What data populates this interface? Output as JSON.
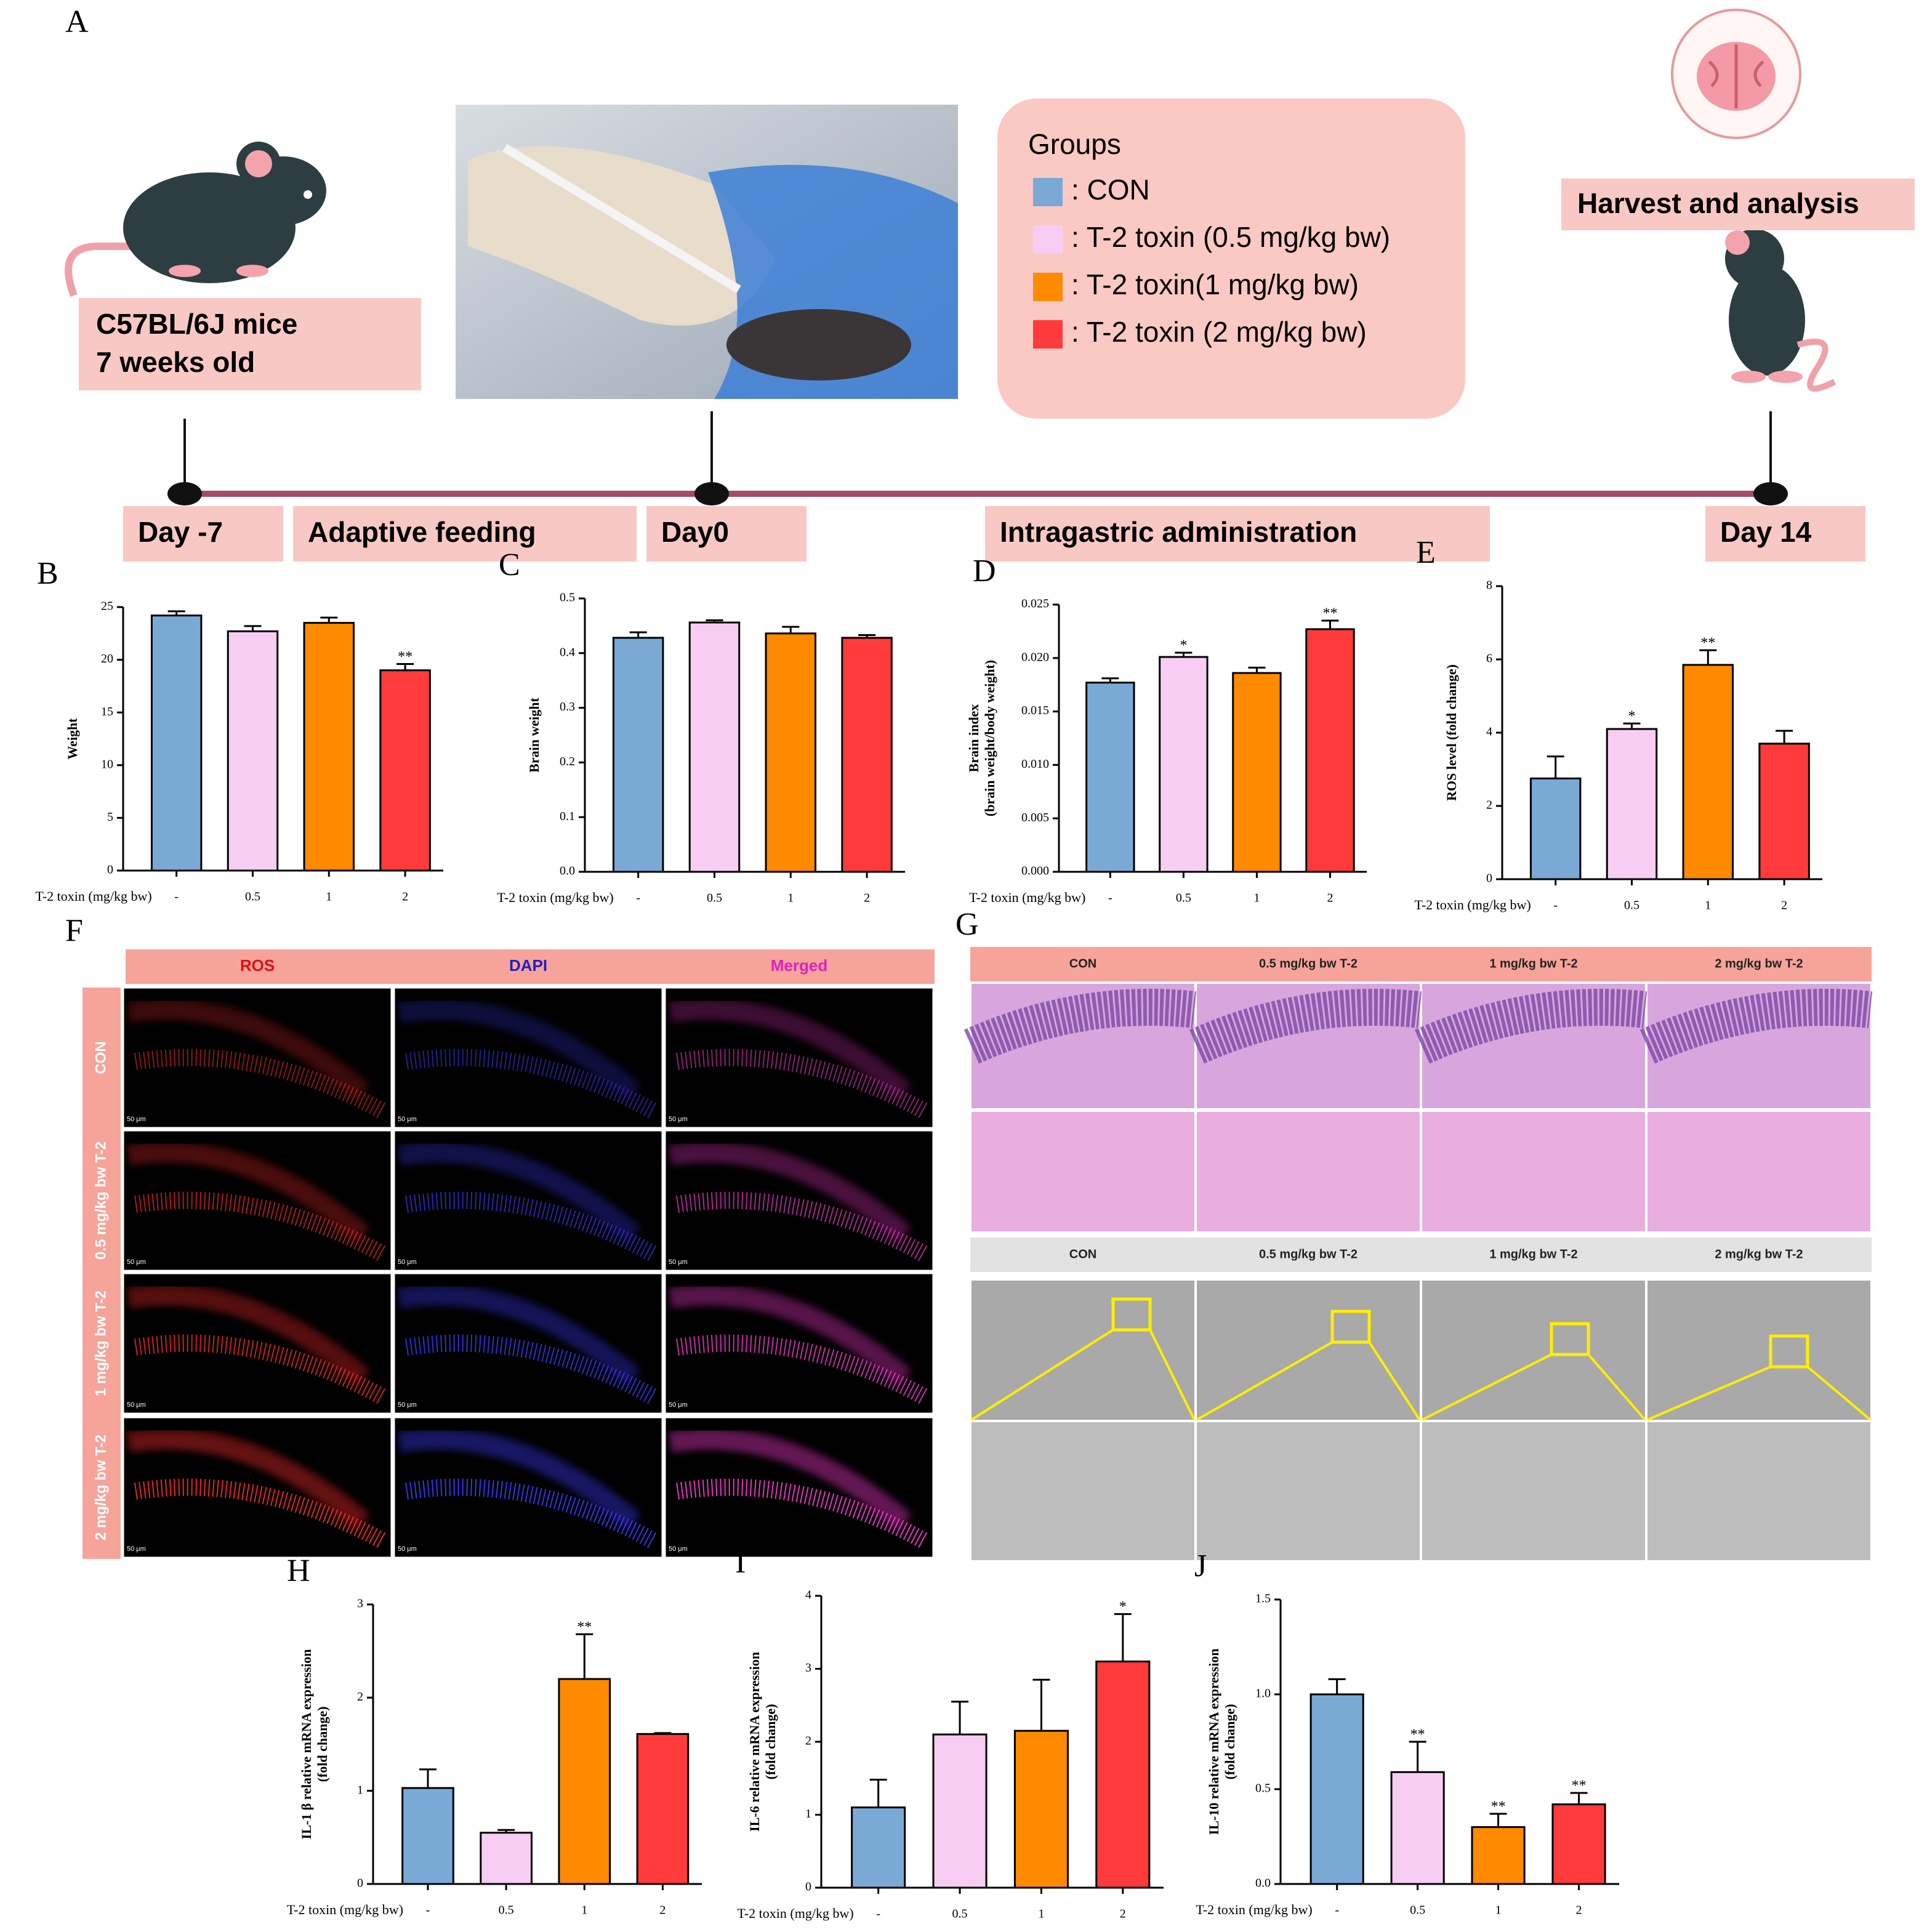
{
  "panel_a": {
    "label": "A",
    "mice_box": [
      "C57BL/6J mice",
      "7 weeks old"
    ],
    "groups_title": "Groups",
    "groups": [
      {
        "name": ": CON",
        "color": "#7aa9d6"
      },
      {
        "name": ": T-2 toxin (0.5 mg/kg bw)",
        "color": "#f7cdf3"
      },
      {
        "name": ": T-2 toxin(1 mg/kg bw)",
        "color": "#ff8a00"
      },
      {
        "name": ": T-2 toxin (2 mg/kg bw)",
        "color": "#ff3a3a"
      }
    ],
    "harvest": "Harvest and analysis",
    "timeline": [
      "Day -7",
      "Adaptive feeding",
      "Day0",
      "Intragastric administration",
      "Day 14"
    ]
  },
  "panel_f": {
    "label": "F",
    "columns": [
      "ROS",
      "DAPI",
      "Merged"
    ],
    "rows": [
      "CON",
      "0.5 mg/kg bw T-2",
      "1 mg/kg bw T-2",
      "2 mg/kg bw T-2"
    ],
    "scale_bar": "50 μm"
  },
  "panel_g": {
    "label": "G",
    "columns": [
      "CON",
      "0.5 mg/kg bw T-2",
      "1 mg/kg bw T-2",
      "2 mg/kg bw T-2"
    ]
  },
  "chart_data": [
    {
      "type": "bar",
      "label": "B",
      "ylabel": [
        "Weight"
      ],
      "xlabel": "T-2 toxin (mg/kg bw)",
      "categories": [
        "-",
        "0.5",
        "1",
        "2"
      ],
      "values": [
        24.2,
        22.7,
        23.5,
        19.0
      ],
      "errors": [
        0.4,
        0.5,
        0.5,
        0.6
      ],
      "significance": [
        null,
        null,
        null,
        "**"
      ],
      "colors": [
        "#7aa9d6",
        "#f7cdf3",
        "#ff8a00",
        "#ff3a3a"
      ],
      "ylim": [
        0,
        25
      ],
      "yticks": [
        0,
        5,
        10,
        15,
        20,
        25
      ]
    },
    {
      "type": "bar",
      "label": "C",
      "ylabel": [
        "Brain weight"
      ],
      "xlabel": "T-2 toxin (mg/kg bw)",
      "categories": [
        "-",
        "0.5",
        "1",
        "2"
      ],
      "values": [
        0.428,
        0.456,
        0.436,
        0.428
      ],
      "errors": [
        0.01,
        0.004,
        0.012,
        0.005
      ],
      "significance": [
        null,
        null,
        null,
        null
      ],
      "colors": [
        "#7aa9d6",
        "#f7cdf3",
        "#ff8a00",
        "#ff3a3a"
      ],
      "ylim": [
        0,
        0.5
      ],
      "yticks": [
        {
          "value": 0,
          "label": "0.0"
        },
        0.1,
        0.2,
        0.3,
        0.4,
        0.5
      ]
    },
    {
      "type": "bar",
      "label": "D",
      "ylabel": [
        "Brain index",
        "(brain weight/body weight)"
      ],
      "xlabel": "T-2 toxin (mg/kg bw)",
      "categories": [
        "-",
        "0.5",
        "1",
        "2"
      ],
      "values": [
        0.0177,
        0.0201,
        0.0186,
        0.0227
      ],
      "errors": [
        0.0004,
        0.0004,
        0.0005,
        0.0008
      ],
      "significance": [
        null,
        "*",
        null,
        "**"
      ],
      "colors": [
        "#7aa9d6",
        "#f7cdf3",
        "#ff8a00",
        "#ff3a3a"
      ],
      "ylim": [
        0,
        0.025
      ],
      "yticks": [
        {
          "value": 0,
          "label": "0.000"
        },
        {
          "value": 0.005,
          "label": "0.005"
        },
        {
          "value": 0.01,
          "label": "0.010"
        },
        {
          "value": 0.015,
          "label": "0.015"
        },
        {
          "value": 0.02,
          "label": "0.020"
        },
        {
          "value": 0.025,
          "label": "0.025"
        }
      ]
    },
    {
      "type": "bar",
      "label": "E",
      "ylabel": [
        "ROS level (fold change)"
      ],
      "xlabel": "T-2 toxin (mg/kg bw)",
      "categories": [
        "-",
        "0.5",
        "1",
        "2"
      ],
      "values": [
        2.75,
        4.1,
        5.85,
        3.7
      ],
      "errors": [
        0.6,
        0.15,
        0.4,
        0.35
      ],
      "significance": [
        null,
        "*",
        "**",
        null
      ],
      "colors": [
        "#7aa9d6",
        "#f7cdf3",
        "#ff8a00",
        "#ff3a3a"
      ],
      "ylim": [
        0,
        8
      ],
      "yticks": [
        0,
        2,
        4,
        6,
        8
      ]
    },
    {
      "type": "bar",
      "label": "H",
      "ylabel": [
        "IL-1 β relative mRNA expression",
        "(fold change)"
      ],
      "xlabel": "T-2 toxin (mg/kg bw)",
      "categories": [
        "-",
        "0.5",
        "1",
        "2"
      ],
      "values": [
        1.03,
        0.55,
        2.2,
        1.61
      ],
      "errors": [
        0.2,
        0.03,
        0.48,
        0.01
      ],
      "significance": [
        null,
        null,
        "**",
        null
      ],
      "colors": [
        "#7aa9d6",
        "#f7cdf3",
        "#ff8a00",
        "#ff3a3a"
      ],
      "ylim": [
        0,
        3
      ],
      "yticks": [
        0,
        1,
        2,
        3
      ]
    },
    {
      "type": "bar",
      "label": "I",
      "ylabel": [
        "IL-6 relative mRNA expression",
        "(fold change)"
      ],
      "xlabel": "T-2 toxin (mg/kg bw)",
      "categories": [
        "-",
        "0.5",
        "1",
        "2"
      ],
      "values": [
        1.1,
        2.1,
        2.15,
        3.1
      ],
      "errors": [
        0.38,
        0.45,
        0.7,
        0.65
      ],
      "significance": [
        null,
        null,
        null,
        "*"
      ],
      "colors": [
        "#7aa9d6",
        "#f7cdf3",
        "#ff8a00",
        "#ff3a3a"
      ],
      "ylim": [
        0,
        4
      ],
      "yticks": [
        0,
        1,
        2,
        3,
        4
      ]
    },
    {
      "type": "bar",
      "label": "J",
      "ylabel": [
        "IL-10 relative mRNA expression",
        "(fold change)"
      ],
      "xlabel": "T-2 toxin (mg/kg bw)",
      "categories": [
        "-",
        "0.5",
        "1",
        "2"
      ],
      "values": [
        1.0,
        0.59,
        0.3,
        0.42
      ],
      "errors": [
        0.08,
        0.16,
        0.07,
        0.06
      ],
      "significance": [
        null,
        "**",
        "**",
        "**"
      ],
      "colors": [
        "#7aa9d6",
        "#f7cdf3",
        "#ff8a00",
        "#ff3a3a"
      ],
      "ylim": [
        0,
        1.5
      ],
      "yticks": [
        {
          "value": 0,
          "label": "0.0"
        },
        0.5,
        {
          "value": 1,
          "label": "1.0"
        },
        1.5
      ]
    }
  ]
}
